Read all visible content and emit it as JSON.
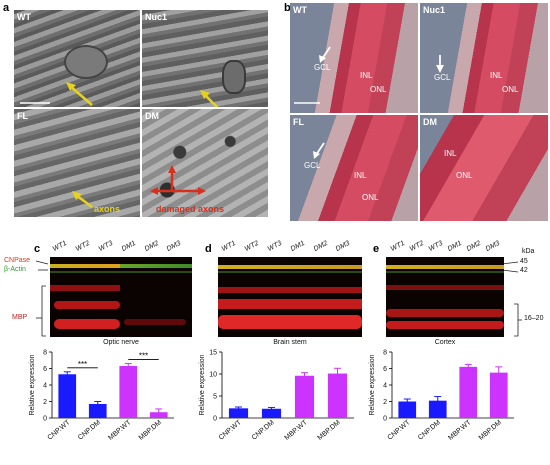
{
  "panels": {
    "a": {
      "letter": "a",
      "quadrants": [
        {
          "label": "WT",
          "note": ""
        },
        {
          "label": "Nuc1",
          "note": ""
        },
        {
          "label": "FL",
          "note": "axons",
          "note_color": "#e6d21c"
        },
        {
          "label": "DM",
          "note": "damaged axons",
          "note_color": "#d6311e"
        }
      ]
    },
    "b": {
      "letter": "b",
      "quadrants": [
        {
          "label": "WT",
          "layers": [
            "GCL",
            "INL",
            "ONL"
          ]
        },
        {
          "label": "Nuc1",
          "layers": [
            "GCL",
            "INL",
            "ONL"
          ]
        },
        {
          "label": "FL",
          "layers": [
            "GCL",
            "INL",
            "ONL"
          ]
        },
        {
          "label": "DM",
          "layers": [
            "INL",
            "ONL"
          ]
        }
      ]
    },
    "blots": [
      {
        "letter": "c",
        "tissue": "Optic nerve"
      },
      {
        "letter": "d",
        "tissue": "Brain stem"
      },
      {
        "letter": "e",
        "tissue": "Cortex"
      }
    ],
    "lanes": [
      "WT1",
      "WT2",
      "WT3",
      "DM1",
      "DM2",
      "DM3"
    ],
    "left_labels": {
      "cnpase": "CNPase",
      "actin": "β-Actin",
      "mbp": "MBP"
    },
    "right_labels": {
      "kda": "kDa",
      "k45": "45",
      "k42": "42",
      "k1620": "16–20"
    },
    "colors": {
      "blue": "#1a1aff",
      "magenta": "#cc33ff",
      "cnpase": "#d13b1c",
      "actin": "#2f9a2f",
      "mbp": "#c41e1e"
    }
  },
  "chart_data": [
    {
      "type": "bar",
      "panel": "c",
      "categories": [
        "CNP.WT",
        "CNP.DM",
        "MBP.WT",
        "MBP.DM"
      ],
      "values": [
        5.3,
        1.7,
        6.3,
        0.7
      ],
      "errors": [
        0.3,
        0.3,
        0.3,
        0.4
      ],
      "ylabel": "Relative expression",
      "ylim": [
        0,
        8
      ],
      "yticks": [
        0,
        2,
        4,
        6,
        8
      ],
      "significance": [
        {
          "from": 0,
          "to": 1,
          "label": "***"
        },
        {
          "from": 2,
          "to": 3,
          "label": "***"
        }
      ]
    },
    {
      "type": "bar",
      "panel": "d",
      "categories": [
        "CNP.WT",
        "CNP.DM",
        "MBP.WT",
        "MBP.DM"
      ],
      "values": [
        2.2,
        2.1,
        9.6,
        10.1
      ],
      "errors": [
        0.3,
        0.3,
        0.7,
        1.2
      ],
      "ylabel": "Relative expression",
      "ylim": [
        0,
        15
      ],
      "yticks": [
        0,
        5,
        10,
        15
      ]
    },
    {
      "type": "bar",
      "panel": "e",
      "categories": [
        "CNP.WT",
        "CNP.DM",
        "MBP.WT",
        "MBP.DM"
      ],
      "values": [
        2.0,
        2.1,
        6.2,
        5.5
      ],
      "errors": [
        0.3,
        0.5,
        0.3,
        0.7
      ],
      "ylabel": "Relative expression",
      "ylim": [
        0,
        8
      ],
      "yticks": [
        0,
        2,
        4,
        6,
        8
      ]
    }
  ]
}
